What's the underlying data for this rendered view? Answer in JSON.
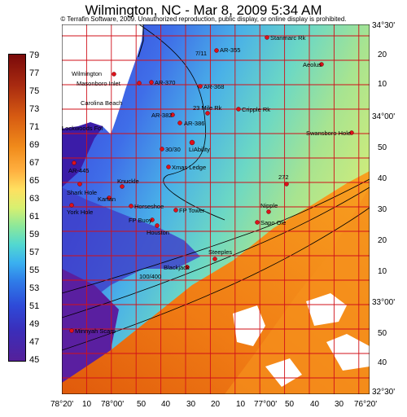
{
  "title": "Wilmington, NC - Mar 8, 2009 5:34 AM",
  "copyright": "© Terrafin Software, 2009. Unauthorized reproduction, public display, or online display is prohibited.",
  "legend": {
    "values": [
      "79",
      "77",
      "75",
      "73",
      "71",
      "69",
      "67",
      "65",
      "63",
      "61",
      "59",
      "57",
      "55",
      "53",
      "51",
      "49",
      "47",
      "45"
    ]
  },
  "lat_labels": {
    "top_left": "34°30'",
    "l20": "20",
    "l10": "10",
    "l34": "34°00'",
    "l50": "50",
    "l40": "40",
    "l30": "30",
    "l20b": "20",
    "l10b": "10",
    "l33": "33°00'",
    "l50b": "50",
    "l40b": "40",
    "l3230": "32°30'"
  },
  "lon_labels": [
    "78°20'",
    "10",
    "78°00'",
    "50",
    "40",
    "30",
    "20",
    "10",
    "77°00'",
    "50",
    "40",
    "30",
    "76°20'"
  ],
  "places": {
    "wilmington": "Wilmington",
    "masonboro": "Masonboro Inlet",
    "carolina_beach": "Carolina Beach",
    "lockwoods": "Lockwoods Fol",
    "bald_head": "AR-382",
    "ar370": "AR-370",
    "ar368": "AR-368",
    "ar355": "AR-355",
    "seven11": "7/11",
    "stanmarc": "Stanmarc Rk",
    "aeolus": "Aeolus",
    "mile23": "23 Mile Rk",
    "cripple": "Cripple Rk",
    "ar386": "AR-386",
    "liability": "LiAbility",
    "thirty": "30/30",
    "xmas": "Xmas Ledge",
    "swansboro": "Swansboro Hole",
    "ar445": "AR-445",
    "shark": "Shark Hole",
    "knuckle": "Knuckle",
    "kartan": "Kartan",
    "horseshoe": "Horseshoe",
    "york": "York Hole",
    "fptower": "FP Tower",
    "fpbuoy": "FP Buoy",
    "houston": "Houston",
    "r272": "272",
    "nipple": "Nipple",
    "sapoje": "Sapo Ole",
    "steeples": "Steeples",
    "blackjack": "Blackjack",
    "hundred": "100/400",
    "minnyah": "Minnyah Scarp"
  }
}
